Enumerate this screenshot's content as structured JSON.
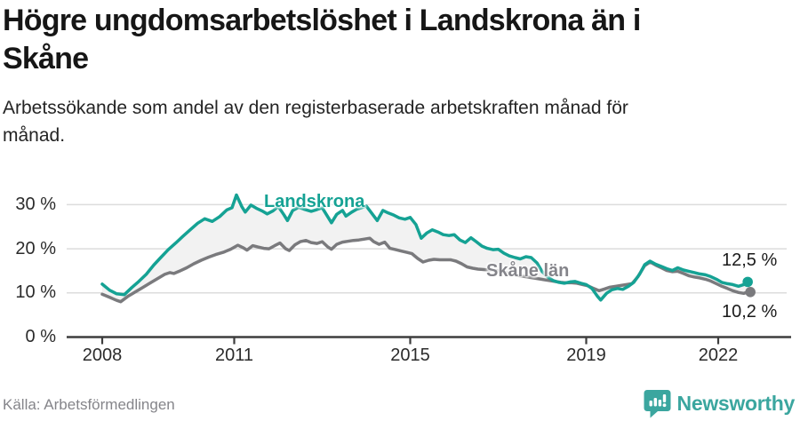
{
  "header": {
    "title_lines": [
      "Högre ungdomsarbetslöshet i Landskrona än i",
      "Skåne"
    ],
    "subtitle_lines": [
      "Arbetssökande som andel av den registerbaserade arbetskraften månad för",
      "månad."
    ]
  },
  "footer": {
    "source": "Källa: Arbetsförmedlingen",
    "brand": "Newsworthy",
    "brand_icon": "bar-chart-speech-bubble-icon"
  },
  "colors": {
    "landskrona_teal": "#15a294",
    "skane_gray": "#7a7a7d",
    "band_fill": "#f2f2f2",
    "gridline": "#dcdcdc",
    "axis": "#3d3d3d",
    "brand_teal": "#3ba69f",
    "annotation_text": "#1a1a1a"
  },
  "chart_data": {
    "type": "line",
    "title": "Högre ungdomsarbetslöshet i Landskrona än i Skåne",
    "subtitle": "Arbetssökande som andel av den registerbaserade arbetskraften månad för månad.",
    "xlabel": "",
    "ylabel": "",
    "y_unit": "%",
    "xlim": [
      2008,
      2022.9
    ],
    "ylim": [
      0,
      34
    ],
    "grid": "horizontal",
    "legend_position": "inline-labels",
    "band_fill_between_series": true,
    "band_color": "#f2f2f2",
    "y_ticks": [
      {
        "value": 0,
        "label": "0 %"
      },
      {
        "value": 10,
        "label": "10 %"
      },
      {
        "value": 20,
        "label": "20 %"
      },
      {
        "value": 30,
        "label": "30 %"
      }
    ],
    "x_ticks": [
      {
        "value": 2008,
        "label": "2008"
      },
      {
        "value": 2011,
        "label": "2011"
      },
      {
        "value": 2015,
        "label": "2015"
      },
      {
        "value": 2019,
        "label": "2019"
      },
      {
        "value": 2022,
        "label": "2022"
      }
    ],
    "series": [
      {
        "name": "Landskrona",
        "color": "#15a294",
        "end_label": "12,5 %",
        "end_value": 12.5,
        "points": [
          [
            2008.0,
            12.0
          ],
          [
            2008.17,
            10.6
          ],
          [
            2008.33,
            9.8
          ],
          [
            2008.5,
            9.6
          ],
          [
            2008.67,
            11.2
          ],
          [
            2008.83,
            12.6
          ],
          [
            2009.0,
            14.2
          ],
          [
            2009.17,
            16.3
          ],
          [
            2009.33,
            18.0
          ],
          [
            2009.5,
            19.8
          ],
          [
            2009.67,
            21.3
          ],
          [
            2009.83,
            22.8
          ],
          [
            2010.0,
            24.3
          ],
          [
            2010.17,
            25.8
          ],
          [
            2010.33,
            26.8
          ],
          [
            2010.5,
            26.2
          ],
          [
            2010.67,
            27.3
          ],
          [
            2010.83,
            28.8
          ],
          [
            2010.95,
            29.3
          ],
          [
            2011.05,
            32.2
          ],
          [
            2011.17,
            29.6
          ],
          [
            2011.25,
            28.3
          ],
          [
            2011.38,
            29.9
          ],
          [
            2011.5,
            29.2
          ],
          [
            2011.63,
            28.6
          ],
          [
            2011.75,
            27.9
          ],
          [
            2011.88,
            28.6
          ],
          [
            2012.0,
            29.6
          ],
          [
            2012.13,
            27.7
          ],
          [
            2012.21,
            26.4
          ],
          [
            2012.33,
            28.7
          ],
          [
            2012.46,
            29.4
          ],
          [
            2012.58,
            29.0
          ],
          [
            2012.75,
            28.5
          ],
          [
            2012.88,
            28.9
          ],
          [
            2013.0,
            29.3
          ],
          [
            2013.13,
            27.2
          ],
          [
            2013.21,
            25.9
          ],
          [
            2013.33,
            27.8
          ],
          [
            2013.46,
            28.7
          ],
          [
            2013.54,
            27.4
          ],
          [
            2013.67,
            28.3
          ],
          [
            2013.79,
            29.0
          ],
          [
            2013.92,
            29.4
          ],
          [
            2014.0,
            29.7
          ],
          [
            2014.13,
            28.0
          ],
          [
            2014.25,
            26.4
          ],
          [
            2014.38,
            28.7
          ],
          [
            2014.5,
            28.1
          ],
          [
            2014.63,
            27.6
          ],
          [
            2014.75,
            27.0
          ],
          [
            2014.88,
            26.7
          ],
          [
            2015.0,
            27.1
          ],
          [
            2015.13,
            25.5
          ],
          [
            2015.25,
            22.4
          ],
          [
            2015.38,
            23.6
          ],
          [
            2015.5,
            24.3
          ],
          [
            2015.63,
            23.8
          ],
          [
            2015.75,
            23.2
          ],
          [
            2015.88,
            23.0
          ],
          [
            2016.0,
            23.2
          ],
          [
            2016.13,
            22.0
          ],
          [
            2016.25,
            21.4
          ],
          [
            2016.38,
            22.5
          ],
          [
            2016.5,
            21.6
          ],
          [
            2016.63,
            20.6
          ],
          [
            2016.75,
            20.1
          ],
          [
            2016.88,
            19.8
          ],
          [
            2017.0,
            19.9
          ],
          [
            2017.13,
            19.0
          ],
          [
            2017.25,
            18.4
          ],
          [
            2017.38,
            18.0
          ],
          [
            2017.5,
            17.7
          ],
          [
            2017.63,
            18.2
          ],
          [
            2017.75,
            18.0
          ],
          [
            2017.88,
            16.8
          ],
          [
            2018.0,
            14.8
          ],
          [
            2018.13,
            13.6
          ],
          [
            2018.25,
            12.8
          ],
          [
            2018.38,
            12.4
          ],
          [
            2018.5,
            12.2
          ],
          [
            2018.63,
            12.5
          ],
          [
            2018.75,
            12.6
          ],
          [
            2018.88,
            12.2
          ],
          [
            2019.0,
            11.9
          ],
          [
            2019.13,
            11.0
          ],
          [
            2019.25,
            9.3
          ],
          [
            2019.33,
            8.4
          ],
          [
            2019.46,
            9.9
          ],
          [
            2019.58,
            10.7
          ],
          [
            2019.71,
            11.0
          ],
          [
            2019.83,
            10.8
          ],
          [
            2019.96,
            11.5
          ],
          [
            2020.08,
            12.4
          ],
          [
            2020.21,
            14.2
          ],
          [
            2020.33,
            16.4
          ],
          [
            2020.45,
            17.2
          ],
          [
            2020.58,
            16.5
          ],
          [
            2020.71,
            16.0
          ],
          [
            2020.83,
            15.5
          ],
          [
            2020.96,
            15.1
          ],
          [
            2021.08,
            15.7
          ],
          [
            2021.21,
            15.2
          ],
          [
            2021.33,
            14.9
          ],
          [
            2021.46,
            14.6
          ],
          [
            2021.58,
            14.3
          ],
          [
            2021.71,
            14.1
          ],
          [
            2021.83,
            13.7
          ],
          [
            2021.96,
            13.1
          ],
          [
            2022.08,
            12.4
          ],
          [
            2022.21,
            12.1
          ],
          [
            2022.33,
            11.9
          ],
          [
            2022.46,
            11.5
          ],
          [
            2022.58,
            11.9
          ],
          [
            2022.67,
            12.5
          ]
        ]
      },
      {
        "name": "Skåne län",
        "color": "#7a7a7d",
        "end_label": "10,2 %",
        "end_value": 10.2,
        "points": [
          [
            2008.0,
            9.7
          ],
          [
            2008.17,
            9.0
          ],
          [
            2008.33,
            8.3
          ],
          [
            2008.42,
            8.0
          ],
          [
            2008.58,
            9.2
          ],
          [
            2008.75,
            10.2
          ],
          [
            2008.92,
            11.2
          ],
          [
            2009.08,
            12.2
          ],
          [
            2009.25,
            13.2
          ],
          [
            2009.42,
            14.2
          ],
          [
            2009.54,
            14.6
          ],
          [
            2009.63,
            14.4
          ],
          [
            2009.75,
            14.9
          ],
          [
            2009.92,
            15.7
          ],
          [
            2010.08,
            16.6
          ],
          [
            2010.25,
            17.4
          ],
          [
            2010.42,
            18.1
          ],
          [
            2010.58,
            18.7
          ],
          [
            2010.75,
            19.2
          ],
          [
            2010.92,
            19.9
          ],
          [
            2011.08,
            20.8
          ],
          [
            2011.21,
            20.2
          ],
          [
            2011.29,
            19.7
          ],
          [
            2011.42,
            20.7
          ],
          [
            2011.54,
            20.4
          ],
          [
            2011.67,
            20.1
          ],
          [
            2011.79,
            20.0
          ],
          [
            2011.92,
            20.7
          ],
          [
            2012.04,
            21.3
          ],
          [
            2012.17,
            20.0
          ],
          [
            2012.25,
            19.6
          ],
          [
            2012.38,
            20.9
          ],
          [
            2012.5,
            21.6
          ],
          [
            2012.63,
            21.9
          ],
          [
            2012.75,
            21.4
          ],
          [
            2012.88,
            21.2
          ],
          [
            2013.0,
            21.6
          ],
          [
            2013.13,
            20.4
          ],
          [
            2013.21,
            19.9
          ],
          [
            2013.33,
            21.0
          ],
          [
            2013.46,
            21.5
          ],
          [
            2013.58,
            21.7
          ],
          [
            2013.71,
            21.9
          ],
          [
            2013.83,
            22.0
          ],
          [
            2013.96,
            22.2
          ],
          [
            2014.08,
            22.4
          ],
          [
            2014.17,
            21.6
          ],
          [
            2014.29,
            21.0
          ],
          [
            2014.42,
            21.5
          ],
          [
            2014.54,
            20.1
          ],
          [
            2014.67,
            19.8
          ],
          [
            2014.79,
            19.5
          ],
          [
            2014.92,
            19.2
          ],
          [
            2015.04,
            18.9
          ],
          [
            2015.17,
            17.8
          ],
          [
            2015.29,
            17.0
          ],
          [
            2015.42,
            17.4
          ],
          [
            2015.54,
            17.6
          ],
          [
            2015.67,
            17.5
          ],
          [
            2015.79,
            17.5
          ],
          [
            2015.92,
            17.5
          ],
          [
            2016.04,
            17.2
          ],
          [
            2016.17,
            16.6
          ],
          [
            2016.29,
            15.9
          ],
          [
            2016.42,
            15.6
          ],
          [
            2016.54,
            15.4
          ],
          [
            2016.67,
            15.3
          ],
          [
            2016.79,
            15.2
          ],
          [
            2016.92,
            15.1
          ],
          [
            2017.04,
            14.9
          ],
          [
            2017.17,
            14.6
          ],
          [
            2017.29,
            14.3
          ],
          [
            2017.42,
            14.0
          ],
          [
            2017.54,
            13.8
          ],
          [
            2017.67,
            13.6
          ],
          [
            2017.79,
            13.4
          ],
          [
            2017.92,
            13.2
          ],
          [
            2018.04,
            13.0
          ],
          [
            2018.17,
            12.8
          ],
          [
            2018.29,
            12.6
          ],
          [
            2018.42,
            12.4
          ],
          [
            2018.54,
            12.3
          ],
          [
            2018.67,
            12.3
          ],
          [
            2018.79,
            12.2
          ],
          [
            2018.92,
            11.9
          ],
          [
            2019.04,
            11.6
          ],
          [
            2019.17,
            11.0
          ],
          [
            2019.29,
            10.5
          ],
          [
            2019.42,
            10.9
          ],
          [
            2019.54,
            11.3
          ],
          [
            2019.67,
            11.5
          ],
          [
            2019.79,
            11.7
          ],
          [
            2019.92,
            11.9
          ],
          [
            2020.04,
            12.1
          ],
          [
            2020.17,
            13.6
          ],
          [
            2020.33,
            16.2
          ],
          [
            2020.45,
            17.0
          ],
          [
            2020.58,
            16.3
          ],
          [
            2020.71,
            15.7
          ],
          [
            2020.83,
            15.1
          ],
          [
            2020.96,
            14.8
          ],
          [
            2021.08,
            14.9
          ],
          [
            2021.21,
            14.4
          ],
          [
            2021.33,
            13.9
          ],
          [
            2021.46,
            13.6
          ],
          [
            2021.58,
            13.4
          ],
          [
            2021.71,
            13.1
          ],
          [
            2021.83,
            12.7
          ],
          [
            2021.96,
            12.1
          ],
          [
            2022.08,
            11.5
          ],
          [
            2022.21,
            11.0
          ],
          [
            2022.33,
            10.5
          ],
          [
            2022.46,
            10.1
          ],
          [
            2022.58,
            9.9
          ],
          [
            2022.67,
            10.2
          ]
        ]
      }
    ]
  }
}
